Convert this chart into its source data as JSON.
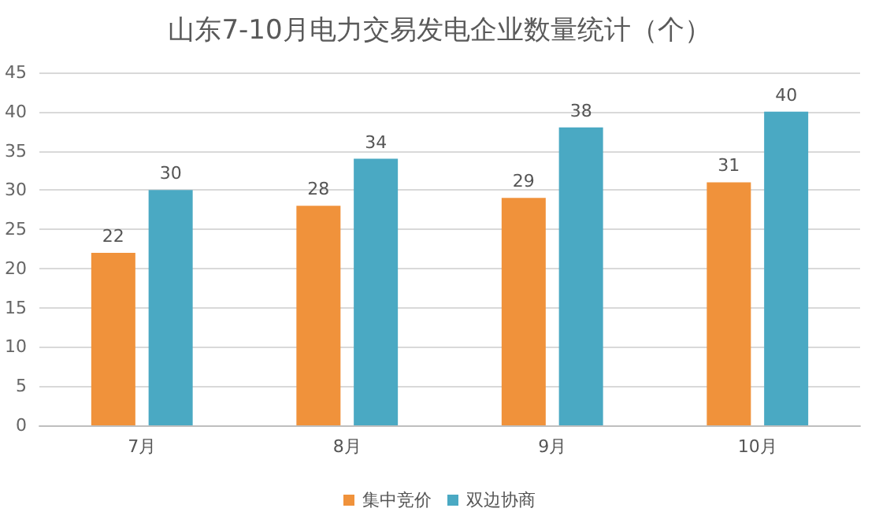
{
  "chart_data": {
    "type": "bar",
    "title": "山东7-10月电力交易发电企业数量统计（个）",
    "categories": [
      "7月",
      "8月",
      "9月",
      "10月"
    ],
    "series": [
      {
        "name": "集中竞价",
        "color": "#f0923b",
        "values": [
          22,
          28,
          29,
          31
        ]
      },
      {
        "name": "双边协商",
        "color": "#4aa9c3",
        "values": [
          30,
          34,
          38,
          40
        ]
      }
    ],
    "ylim": [
      0,
      45
    ],
    "yticks": [
      0,
      5,
      10,
      15,
      20,
      25,
      30,
      35,
      40,
      45
    ],
    "grid": "y",
    "legend": "bottom",
    "data_labels": true
  }
}
